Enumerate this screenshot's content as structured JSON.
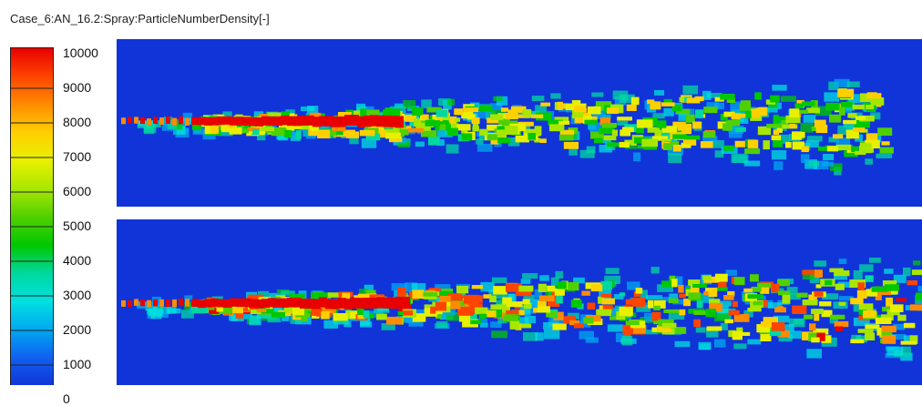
{
  "window": {
    "title": "Case_6:AN_16.2:Spray:ParticleNumberDensity[-]"
  },
  "legend": {
    "ticks": [
      "10000",
      "9000",
      "8000",
      "7000",
      "6000",
      "5000",
      "4000",
      "3000",
      "2000",
      "1000",
      "0"
    ],
    "range": [
      0,
      10000
    ],
    "palette": [
      "#e80000",
      "#ff4400",
      "#ff8c00",
      "#ffd000",
      "#e8f000",
      "#a8e600",
      "#50d000",
      "#00c800",
      "#00d8a0",
      "#00e0e0",
      "#00a8f0",
      "#1060f0",
      "#1034d8"
    ]
  },
  "panels": [
    {
      "name": "spray-plot-top",
      "background": "#1034d8"
    },
    {
      "name": "spray-plot-bottom",
      "background": "#1034d8"
    }
  ]
}
